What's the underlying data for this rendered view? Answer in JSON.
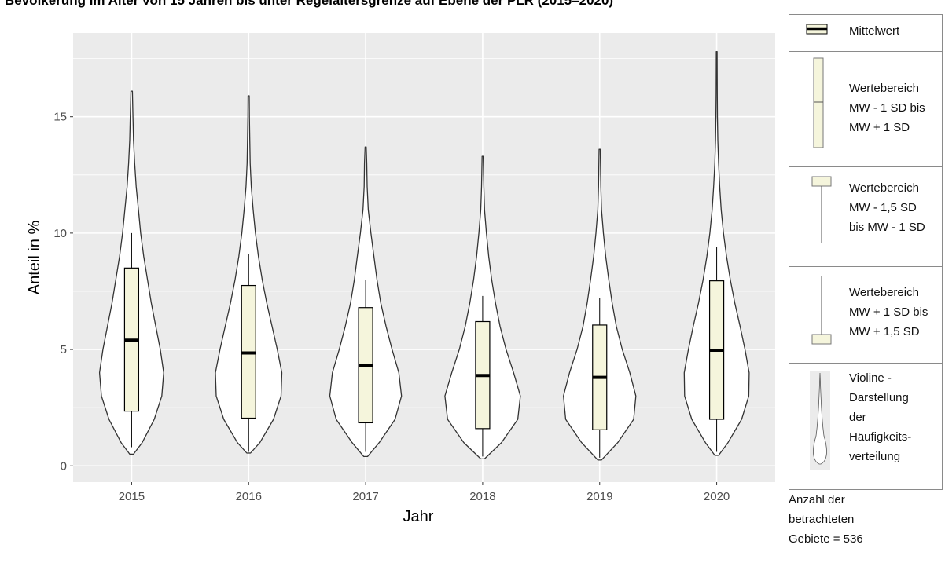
{
  "title": "Bevölkerung im Alter von 15 Jahren bis unter Regelaltersgrenze auf Ebene der PLR (2015–2020)",
  "colors": {
    "panel": "#ebebeb",
    "grid": "#ffffff",
    "violin_fill": "#ffffff",
    "violin_stroke": "#333333",
    "box_fill": "#f5f5dc",
    "box_stroke": "#000000",
    "whisker": "#000000"
  },
  "chart_data": {
    "type": "violin",
    "xlabel": "Jahr",
    "ylabel": "Anteil in %",
    "categories": [
      "2015",
      "2016",
      "2017",
      "2018",
      "2019",
      "2020"
    ],
    "ylim": [
      -0.7,
      18.6
    ],
    "yticks": [
      0,
      5,
      10,
      15
    ],
    "grid": true,
    "series": [
      {
        "year": "2015",
        "mean": 5.4,
        "box": [
          2.35,
          8.5
        ],
        "whisker": [
          0.8,
          10.0
        ],
        "violin_range": [
          0.5,
          16.1
        ],
        "density_y": [
          0.5,
          1.0,
          2.0,
          3.0,
          4.0,
          5.0,
          6.0,
          7.0,
          8.0,
          9.0,
          10.0,
          11.0,
          12.0,
          13.0,
          14.0,
          15.0,
          16.1
        ],
        "density_w": [
          0.05,
          0.28,
          0.6,
          0.8,
          0.85,
          0.76,
          0.64,
          0.52,
          0.42,
          0.32,
          0.24,
          0.18,
          0.12,
          0.08,
          0.05,
          0.035,
          0.02
        ]
      },
      {
        "year": "2016",
        "mean": 4.85,
        "box": [
          2.05,
          7.75
        ],
        "whisker": [
          0.6,
          9.1
        ],
        "violin_range": [
          0.55,
          15.9
        ],
        "density_y": [
          0.55,
          1.0,
          2.0,
          3.0,
          4.0,
          5.0,
          6.0,
          7.0,
          8.0,
          9.0,
          10.0,
          11.0,
          12.0,
          13.0,
          14.0,
          15.0,
          15.9
        ],
        "density_w": [
          0.05,
          0.3,
          0.66,
          0.86,
          0.88,
          0.76,
          0.62,
          0.48,
          0.36,
          0.26,
          0.18,
          0.12,
          0.07,
          0.04,
          0.03,
          0.02,
          0.015
        ]
      },
      {
        "year": "2017",
        "mean": 4.3,
        "box": [
          1.85,
          6.8
        ],
        "whisker": [
          0.6,
          8.0
        ],
        "violin_range": [
          0.4,
          13.7
        ],
        "density_y": [
          0.4,
          1.0,
          2.0,
          3.0,
          4.0,
          5.0,
          6.0,
          7.0,
          8.0,
          9.0,
          10.0,
          11.0,
          12.0,
          13.0,
          13.7
        ],
        "density_w": [
          0.05,
          0.36,
          0.78,
          0.95,
          0.88,
          0.7,
          0.54,
          0.4,
          0.3,
          0.22,
          0.14,
          0.07,
          0.04,
          0.03,
          0.015
        ]
      },
      {
        "year": "2018",
        "mean": 3.88,
        "box": [
          1.6,
          6.2
        ],
        "whisker": [
          0.4,
          7.3
        ],
        "violin_range": [
          0.3,
          13.3
        ],
        "density_y": [
          0.3,
          1.0,
          2.0,
          3.0,
          4.0,
          5.0,
          6.0,
          7.0,
          8.0,
          9.0,
          10.0,
          11.0,
          12.0,
          13.3
        ],
        "density_w": [
          0.05,
          0.5,
          0.93,
          1.0,
          0.82,
          0.62,
          0.46,
          0.34,
          0.24,
          0.16,
          0.1,
          0.05,
          0.03,
          0.015
        ]
      },
      {
        "year": "2019",
        "mean": 3.8,
        "box": [
          1.55,
          6.05
        ],
        "whisker": [
          0.35,
          7.2
        ],
        "violin_range": [
          0.25,
          13.6
        ],
        "density_y": [
          0.25,
          1.0,
          2.0,
          3.0,
          4.0,
          5.0,
          6.0,
          7.0,
          8.0,
          9.0,
          10.0,
          11.0,
          12.0,
          13.6
        ],
        "density_w": [
          0.05,
          0.48,
          0.9,
          0.96,
          0.8,
          0.6,
          0.44,
          0.33,
          0.24,
          0.16,
          0.1,
          0.05,
          0.03,
          0.015
        ]
      },
      {
        "year": "2020",
        "mean": 4.97,
        "box": [
          2.0,
          7.95
        ],
        "whisker": [
          0.6,
          9.4
        ],
        "violin_range": [
          0.45,
          17.8
        ],
        "density_y": [
          0.45,
          1.0,
          2.0,
          3.0,
          4.0,
          5.0,
          6.0,
          7.0,
          8.0,
          9.0,
          10.0,
          11.0,
          12.0,
          13.0,
          14.0,
          15.0,
          16.0,
          17.8
        ],
        "density_w": [
          0.05,
          0.3,
          0.66,
          0.85,
          0.86,
          0.75,
          0.62,
          0.48,
          0.36,
          0.26,
          0.18,
          0.12,
          0.08,
          0.05,
          0.03,
          0.02,
          0.015,
          0.01
        ]
      }
    ]
  },
  "legend": {
    "mean_label": "Mittelwert",
    "range_label": [
      "Wertebereich",
      "MW - 1 SD bis",
      "MW + 1 SD"
    ],
    "lower_label": [
      "Wertebereich",
      "MW - 1,5 SD",
      "bis MW - 1 SD"
    ],
    "upper_label": [
      "Wertebereich",
      "MW + 1 SD bis",
      "MW + 1,5 SD"
    ],
    "violin_label": [
      "Violine -",
      "Darstellung",
      "der",
      "Häufigkeits-",
      "verteilung"
    ],
    "note": [
      "Anzahl der",
      "betrachteten",
      "Gebiete = 536"
    ]
  }
}
